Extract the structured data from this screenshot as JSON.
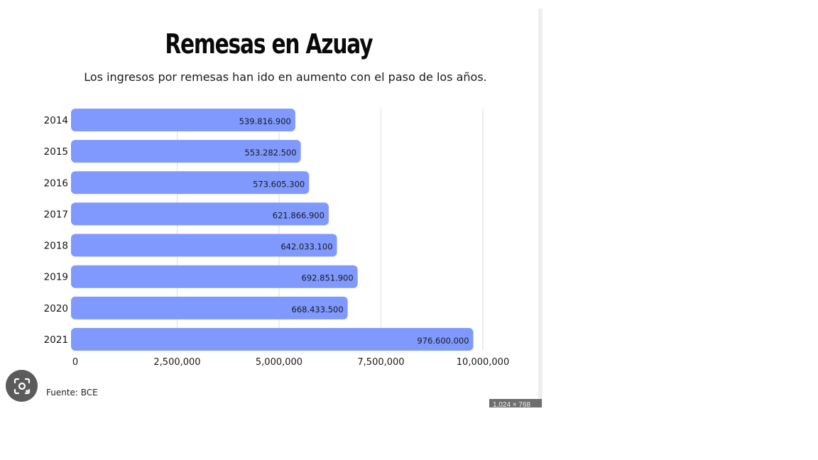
{
  "chart_data": {
    "type": "bar",
    "orientation": "horizontal",
    "title": "Remesas en Azuay",
    "subtitle": "Los ingresos por remesas han ido en aumento con el paso de los años.",
    "categories": [
      "2014",
      "2015",
      "2016",
      "2017",
      "2018",
      "2019",
      "2020",
      "2021"
    ],
    "values": [
      539816900,
      553282500,
      573605300,
      621866900,
      642033100,
      692851900,
      668433500,
      976600000
    ],
    "value_labels": [
      "539.816.900",
      "553.282.500",
      "573.605.300",
      "621.866.900",
      "642.033.100",
      "692.851.900",
      "668.433.500",
      "976.600.000"
    ],
    "x_axis_ticks": [
      0,
      2500000,
      5000000,
      7500000,
      10000000
    ],
    "x_tick_labels": [
      "0",
      "2,500,000",
      "5,000,000",
      "7,500,000",
      "10,000,000"
    ],
    "x_scale_factor": 100,
    "xlim": [
      0,
      10000000
    ],
    "grid": true,
    "colors": {
      "bar": "#7f99ff",
      "grid": "#dddddd",
      "text": "#1a1a1a"
    }
  },
  "footer": {
    "source": "Fuente: BCE"
  },
  "overlay": {
    "lens_icon": "visual-search-icon",
    "dimensions": "1,024 × 768"
  }
}
